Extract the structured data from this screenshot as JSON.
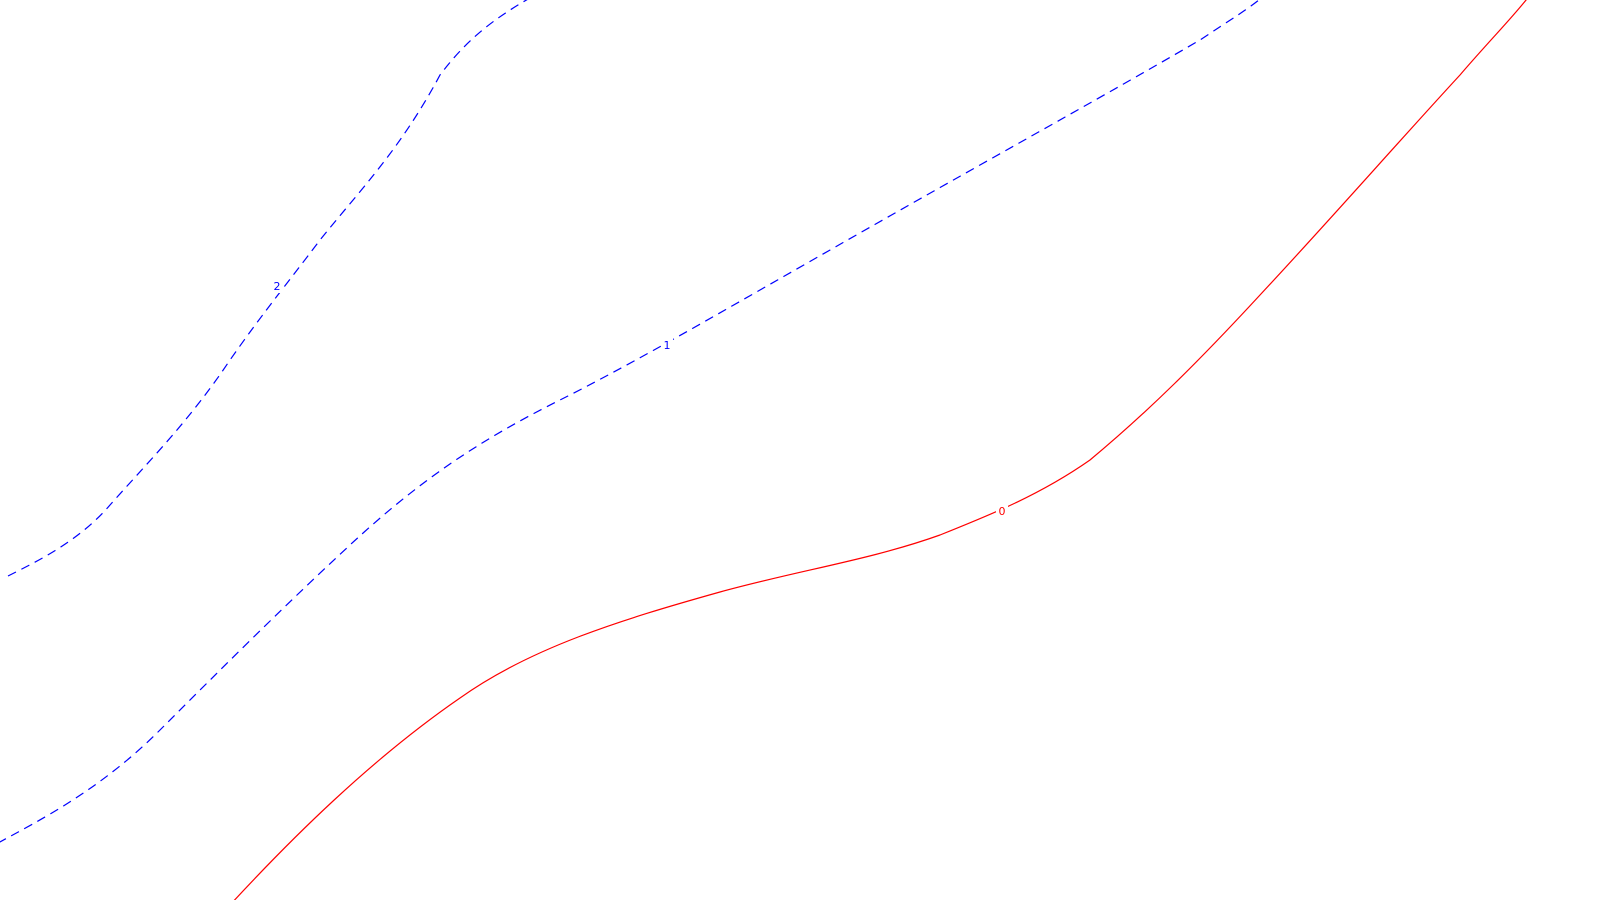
{
  "contours": [
    {
      "id": "level-2",
      "label": "2",
      "style": "dashed",
      "color": "#0000ff"
    },
    {
      "id": "level-1",
      "label": "1",
      "style": "dashed",
      "color": "#0000ff"
    },
    {
      "id": "level-0",
      "label": "0",
      "style": "solid",
      "color": "#ff0000"
    }
  ]
}
